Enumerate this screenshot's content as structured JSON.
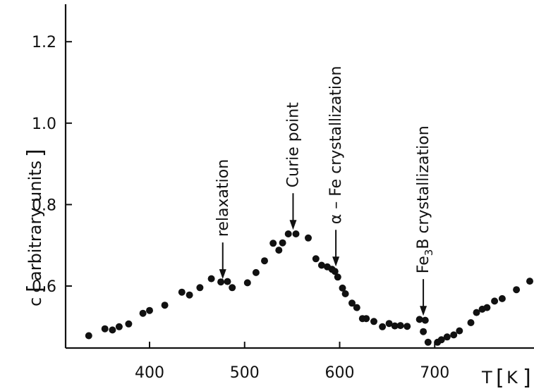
{
  "chart_data": {
    "type": "scatter",
    "xlabel": {
      "symbol": "T",
      "unit": "K"
    },
    "ylabel": {
      "symbol": "c",
      "unit": "arbitrary units"
    },
    "xlim": [
      310,
      800
    ],
    "ylim": [
      0.465,
      1.295
    ],
    "xticks": [
      400,
      500,
      600,
      700
    ],
    "yticks": [
      0.6,
      0.8,
      1.0,
      1.2
    ],
    "ytick_labels": [
      "0.6",
      "0.8",
      "1.0",
      "1.2"
    ],
    "grid": false,
    "series": [
      {
        "x": [
          336,
          353,
          361,
          368,
          378,
          393,
          400,
          416,
          434,
          442,
          453,
          465,
          475,
          482,
          487,
          503,
          512,
          521,
          530,
          536,
          540,
          546,
          554,
          567,
          575,
          581,
          587,
          592,
          595,
          598,
          603,
          606,
          613,
          618,
          624,
          628,
          636,
          645,
          652,
          658,
          664,
          671,
          684,
          690,
          688,
          693,
          703,
          707,
          713,
          720,
          726,
          738,
          744,
          750,
          755,
          763,
          771,
          786,
          800
        ],
        "y": [
          0.478,
          0.495,
          0.492,
          0.5,
          0.507,
          0.533,
          0.54,
          0.553,
          0.585,
          0.578,
          0.596,
          0.618,
          0.61,
          0.611,
          0.596,
          0.608,
          0.633,
          0.662,
          0.705,
          0.688,
          0.706,
          0.728,
          0.728,
          0.718,
          0.667,
          0.651,
          0.647,
          0.641,
          0.636,
          0.622,
          0.595,
          0.581,
          0.558,
          0.547,
          0.52,
          0.52,
          0.513,
          0.5,
          0.508,
          0.502,
          0.503,
          0.501,
          0.518,
          0.516,
          0.488,
          0.462,
          0.462,
          0.468,
          0.475,
          0.48,
          0.49,
          0.51,
          0.535,
          0.543,
          0.547,
          0.563,
          0.569,
          0.591,
          0.612
        ]
      }
    ],
    "annotations": [
      {
        "text": "relaxation",
        "x": 477,
        "y": 0.617
      },
      {
        "text": "Curie point",
        "x": 551,
        "y": 0.738
      },
      {
        "text": "α – Fe  crystallization",
        "x": 596,
        "y": 0.648
      },
      {
        "text": "Fe",
        "sub": "3",
        "text_after": "B  crystallization",
        "x": 688,
        "y": 0.527
      }
    ]
  }
}
